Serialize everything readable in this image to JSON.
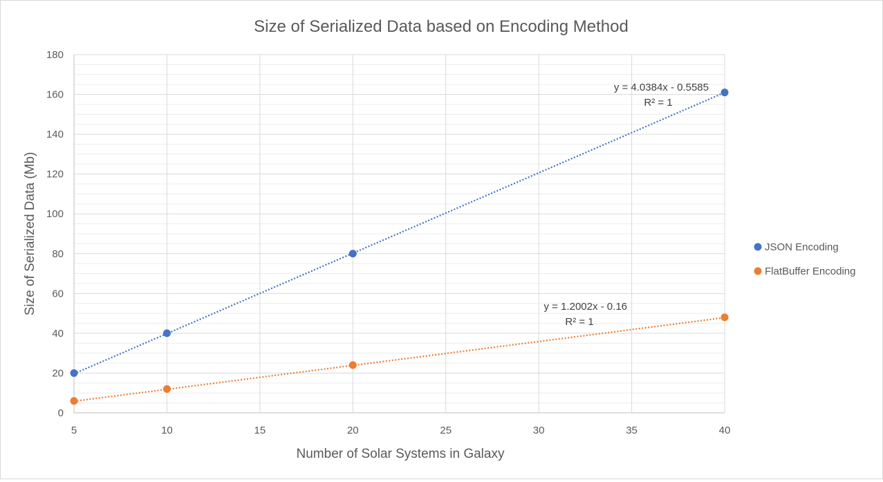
{
  "chart_data": {
    "type": "scatter",
    "title": "Size of Serialized Data based on Encoding Method",
    "xlabel": "Number of Solar Systems in Galaxy",
    "ylabel": "Size of Serialized Data (Mb)",
    "xlim": [
      5,
      40
    ],
    "ylim": [
      0,
      180
    ],
    "x_ticks": [
      "5",
      "10",
      "15",
      "20",
      "25",
      "30",
      "35",
      "40"
    ],
    "y_ticks": [
      "0",
      "20",
      "40",
      "60",
      "80",
      "100",
      "120",
      "140",
      "160",
      "180"
    ],
    "grid": "on",
    "legend_position": "right",
    "series": [
      {
        "name": "JSON Encoding",
        "color": "#4472C4",
        "x": [
          5,
          10,
          20,
          40
        ],
        "y": [
          20,
          40,
          80,
          161
        ],
        "trendline": {
          "type": "linear",
          "slope": 4.0384,
          "intercept": -0.5585,
          "equation": "y = 4.0384x - 0.5585",
          "r2": "R² = 1"
        }
      },
      {
        "name": "FlatBuffer Encoding",
        "color": "#ED7D31",
        "x": [
          5,
          10,
          20,
          40
        ],
        "y": [
          6,
          12,
          24,
          48
        ],
        "trendline": {
          "type": "linear",
          "slope": 1.2002,
          "intercept": -0.16,
          "equation": "y = 1.2002x - 0.16",
          "r2": "R² = 1"
        }
      }
    ]
  }
}
